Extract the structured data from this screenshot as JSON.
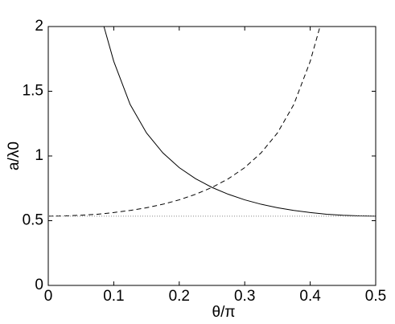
{
  "chart_data": {
    "type": "line",
    "xlabel": "θ/π",
    "ylabel": "a/λ0",
    "x": [
      0,
      0.025,
      0.05,
      0.075,
      0.085,
      0.1,
      0.125,
      0.15,
      0.175,
      0.2,
      0.225,
      0.25,
      0.275,
      0.3,
      0.325,
      0.35,
      0.375,
      0.4,
      0.415,
      0.425,
      0.45,
      0.475,
      0.5
    ],
    "series": [
      {
        "color": "#000000",
        "dash": "solid",
        "values": [
          null,
          null,
          null,
          null,
          2.0,
          1.731,
          1.398,
          1.178,
          1.024,
          0.91,
          0.824,
          0.757,
          0.704,
          0.661,
          0.627,
          0.6,
          0.579,
          0.563,
          0.555,
          0.55,
          0.542,
          0.537,
          0.535
        ]
      },
      {
        "color": "#000000",
        "dash": "dashed",
        "values": [
          0.535,
          0.537,
          0.542,
          0.55,
          0.555,
          0.563,
          0.579,
          0.6,
          0.627,
          0.661,
          0.704,
          0.757,
          0.824,
          0.91,
          1.024,
          1.178,
          1.398,
          1.731,
          2.0,
          null,
          null,
          null,
          null
        ]
      },
      {
        "color": "#888888",
        "dash": "dotted",
        "values": [
          0.535,
          0.535,
          0.535,
          0.535,
          0.535,
          0.535,
          0.535,
          0.535,
          0.535,
          0.535,
          0.535,
          0.535,
          0.535,
          0.535,
          0.535,
          0.535,
          0.535,
          0.535,
          0.535,
          0.535,
          0.535,
          0.535,
          0.535
        ]
      }
    ],
    "xlim": [
      0,
      0.5
    ],
    "xticks": [
      0,
      0.1,
      0.2,
      0.3,
      0.4,
      0.5
    ],
    "ylim": [
      0,
      2
    ],
    "yticks": [
      0,
      0.5,
      1,
      1.5,
      2
    ]
  }
}
